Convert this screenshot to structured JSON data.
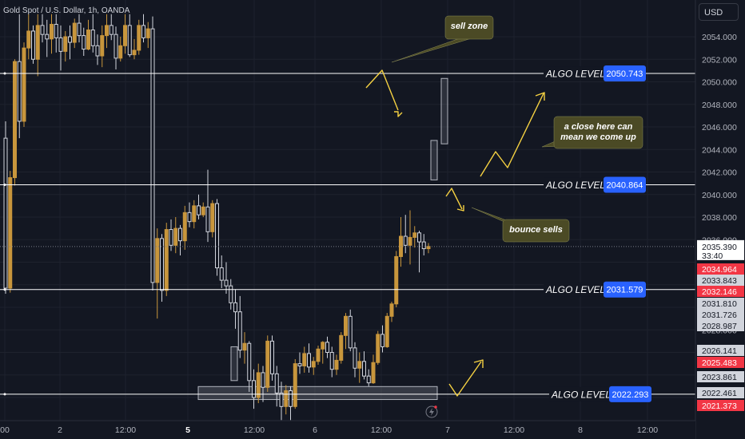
{
  "symbol_title": "Gold Spot / U.S. Dollar, 1h, OANDA",
  "currency_button": "USD",
  "colors": {
    "background": "#131722",
    "grid": "#1e222d",
    "up_candle": "#c8963c",
    "down_candle": "#131722",
    "candle_border": "#d1d4dc",
    "level_line": "#ffffff",
    "level_badge": "#2962ff",
    "annotation_line": "#f5d142",
    "callout_fill": "#4b4a25",
    "red_tag": "#f23645",
    "gray_tag": "#787b86"
  },
  "chart_data": {
    "type": "candlestick",
    "title": "Gold Spot / U.S. Dollar, 1h, OANDA",
    "y_axis": {
      "min": 2020.0,
      "max": 2055.5,
      "ticks": [
        2054.0,
        2052.0,
        2050.0,
        2048.0,
        2046.0,
        2044.0,
        2042.0,
        2040.0,
        2038.0,
        2036.0,
        2028.0
      ]
    },
    "x_axis": {
      "tick_labels": [
        "00",
        "2",
        "12:00",
        "5",
        "12:00",
        "6",
        "12:00",
        "7",
        "12:00",
        "8",
        "12:00"
      ],
      "bold_labels": [
        "5"
      ]
    },
    "current_price": {
      "value": 2035.39,
      "countdown": "33:40"
    },
    "algo_levels": [
      {
        "label": "ALGO LEVEL",
        "value": 2050.743
      },
      {
        "label": "ALGO LEVEL",
        "value": 2040.864
      },
      {
        "label": "ALGO LEVEL",
        "value": 2031.579
      },
      {
        "label": "ALGO LEVEL",
        "value": 2022.293
      }
    ],
    "price_tags": [
      {
        "value": "2034.964",
        "style": "red"
      },
      {
        "value": "2033.843",
        "style": "gray"
      },
      {
        "value": "2032.146",
        "style": "red"
      },
      {
        "value": "2031.810",
        "style": "gray"
      },
      {
        "value": "2031.726",
        "style": "gray"
      },
      {
        "value": "2028.987",
        "style": "gray"
      },
      {
        "value": "2026.141",
        "style": "gray"
      },
      {
        "value": "2025.483",
        "style": "red"
      },
      {
        "value": "2023.861",
        "style": "gray"
      },
      {
        "value": "2022.461",
        "style": "gray"
      },
      {
        "value": "2021.373",
        "style": "red"
      }
    ],
    "annotations": [
      {
        "text": "sell zone"
      },
      {
        "text": "a close here can mean we come up",
        "lines": [
          "a close here can",
          "mean we come up"
        ]
      },
      {
        "text": "bounce sells"
      }
    ],
    "ohlc": [
      [
        2045.0,
        2046.5,
        2031.2,
        2031.7
      ],
      [
        2031.7,
        2042.1,
        2031.3,
        2041.5
      ],
      [
        2041.5,
        2052.0,
        2040.8,
        2051.8
      ],
      [
        2051.8,
        2056.0,
        2045.0,
        2046.5
      ],
      [
        2046.5,
        2053.5,
        2046.0,
        2053.0
      ],
      [
        2053.0,
        2056.0,
        2052.0,
        2054.5
      ],
      [
        2054.5,
        2055.0,
        2051.6,
        2052.0
      ],
      [
        2052.0,
        2056.0,
        2050.5,
        2055.0
      ],
      [
        2055.0,
        2056.0,
        2053.5,
        2054.2
      ],
      [
        2054.2,
        2055.5,
        2052.2,
        2053.8
      ],
      [
        2053.8,
        2056.0,
        2052.5,
        2055.1
      ],
      [
        2055.1,
        2056.0,
        2052.6,
        2053.9
      ],
      [
        2053.9,
        2055.0,
        2051.0,
        2052.7
      ],
      [
        2052.7,
        2054.5,
        2051.8,
        2054.0
      ],
      [
        2054.0,
        2055.0,
        2052.0,
        2053.5
      ],
      [
        2053.5,
        2055.6,
        2053.0,
        2055.2
      ],
      [
        2055.2,
        2056.0,
        2053.5,
        2054.1
      ],
      [
        2054.1,
        2054.8,
        2052.3,
        2052.9
      ],
      [
        2052.9,
        2055.5,
        2052.8,
        2054.6
      ],
      [
        2054.6,
        2056.0,
        2052.6,
        2053.2
      ],
      [
        2053.2,
        2054.2,
        2051.5,
        2052.3
      ],
      [
        2052.3,
        2055.0,
        2051.3,
        2054.1
      ],
      [
        2054.1,
        2056.0,
        2053.0,
        2055.0
      ],
      [
        2055.0,
        2056.0,
        2053.7,
        2054.2
      ],
      [
        2054.2,
        2054.9,
        2051.1,
        2052.1
      ],
      [
        2052.1,
        2054.0,
        2051.8,
        2053.2
      ],
      [
        2053.2,
        2056.0,
        2052.5,
        2055.0
      ],
      [
        2055.0,
        2056.0,
        2052.2,
        2052.4
      ],
      [
        2052.4,
        2053.8,
        2052.0,
        2052.8
      ],
      [
        2052.8,
        2055.5,
        2052.4,
        2055.0
      ],
      [
        2055.0,
        2056.0,
        2053.5,
        2053.9
      ],
      [
        2053.9,
        2055.3,
        2053.0,
        2054.7
      ],
      [
        2054.7,
        2055.8,
        2031.5,
        2032.2
      ],
      [
        2032.2,
        2037.0,
        2029.0,
        2036.1
      ],
      [
        2036.1,
        2036.5,
        2030.5,
        2031.5
      ],
      [
        2031.5,
        2037.5,
        2031.0,
        2036.9
      ],
      [
        2036.9,
        2037.8,
        2035.0,
        2035.5
      ],
      [
        2035.5,
        2038.0,
        2034.8,
        2037.0
      ],
      [
        2037.0,
        2037.3,
        2034.6,
        2035.9
      ],
      [
        2035.9,
        2039.0,
        2035.1,
        2038.4
      ],
      [
        2038.4,
        2039.3,
        2037.1,
        2037.6
      ],
      [
        2037.6,
        2039.5,
        2037.0,
        2039.0
      ],
      [
        2039.0,
        2040.0,
        2037.8,
        2038.2
      ],
      [
        2038.2,
        2039.3,
        2038.0,
        2038.9
      ],
      [
        2038.9,
        2042.2,
        2035.8,
        2036.7
      ],
      [
        2036.7,
        2039.5,
        2036.2,
        2039.2
      ],
      [
        2039.2,
        2039.6,
        2032.8,
        2033.5
      ],
      [
        2033.5,
        2034.6,
        2031.7,
        2032.4
      ],
      [
        2032.4,
        2034.0,
        2031.2,
        2031.9
      ],
      [
        2031.9,
        2032.5,
        2029.8,
        2030.4
      ],
      [
        2030.4,
        2031.6,
        2028.1,
        2029.6
      ],
      [
        2029.6,
        2031.0,
        2025.5,
        2026.2
      ],
      [
        2026.2,
        2027.8,
        2025.0,
        2026.8
      ],
      [
        2026.8,
        2027.0,
        2022.5,
        2023.5
      ],
      [
        2023.5,
        2024.5,
        2021.0,
        2022.0
      ],
      [
        2022.0,
        2025.0,
        2021.5,
        2024.2
      ],
      [
        2024.2,
        2024.8,
        2021.6,
        2022.9
      ],
      [
        2022.9,
        2027.5,
        2022.5,
        2027.0
      ],
      [
        2027.0,
        2027.5,
        2023.5,
        2024.1
      ],
      [
        2024.1,
        2024.8,
        2021.2,
        2022.4
      ],
      [
        2022.4,
        2023.4,
        2020.0,
        2021.2
      ],
      [
        2021.2,
        2023.1,
        2020.5,
        2022.6
      ],
      [
        2022.6,
        2023.0,
        2020.0,
        2021.2
      ],
      [
        2021.2,
        2025.4,
        2021.0,
        2025.0
      ],
      [
        2025.0,
        2026.0,
        2024.1,
        2024.8
      ],
      [
        2024.8,
        2026.5,
        2024.2,
        2025.9
      ],
      [
        2025.9,
        2026.8,
        2024.2,
        2024.7
      ],
      [
        2024.7,
        2025.6,
        2024.0,
        2025.2
      ],
      [
        2025.2,
        2026.6,
        2024.9,
        2026.3
      ],
      [
        2026.3,
        2027.0,
        2025.0,
        2026.9
      ],
      [
        2026.9,
        2027.4,
        2025.5,
        2026.0
      ],
      [
        2026.0,
        2026.5,
        2023.8,
        2024.5
      ],
      [
        2024.5,
        2025.8,
        2024.0,
        2025.3
      ],
      [
        2025.3,
        2027.8,
        2025.0,
        2027.5
      ],
      [
        2027.5,
        2029.5,
        2026.3,
        2029.2
      ],
      [
        2029.2,
        2029.8,
        2026.1,
        2026.4
      ],
      [
        2026.4,
        2026.9,
        2023.8,
        2024.6
      ],
      [
        2024.6,
        2026.0,
        2023.3,
        2025.2
      ],
      [
        2025.2,
        2026.1,
        2023.6,
        2023.9
      ],
      [
        2023.9,
        2024.5,
        2023.0,
        2023.3
      ],
      [
        2023.3,
        2025.8,
        2023.2,
        2025.1
      ],
      [
        2025.1,
        2027.9,
        2024.9,
        2027.6
      ],
      [
        2027.6,
        2028.4,
        2026.0,
        2026.5
      ],
      [
        2026.5,
        2029.5,
        2026.4,
        2029.2
      ],
      [
        2029.2,
        2030.5,
        2028.7,
        2030.3
      ],
      [
        2030.3,
        2035.0,
        2030.0,
        2034.5
      ],
      [
        2034.5,
        2038.0,
        2033.6,
        2036.3
      ],
      [
        2036.3,
        2038.2,
        2034.8,
        2035.5
      ],
      [
        2035.5,
        2038.6,
        2033.8,
        2036.2
      ],
      [
        2036.2,
        2037.2,
        2035.3,
        2036.6
      ],
      [
        2036.6,
        2036.8,
        2033.1,
        2035.8
      ],
      [
        2035.8,
        2036.5,
        2034.6,
        2035.2
      ],
      [
        2035.2,
        2035.7,
        2034.8,
        2035.4
      ]
    ]
  }
}
